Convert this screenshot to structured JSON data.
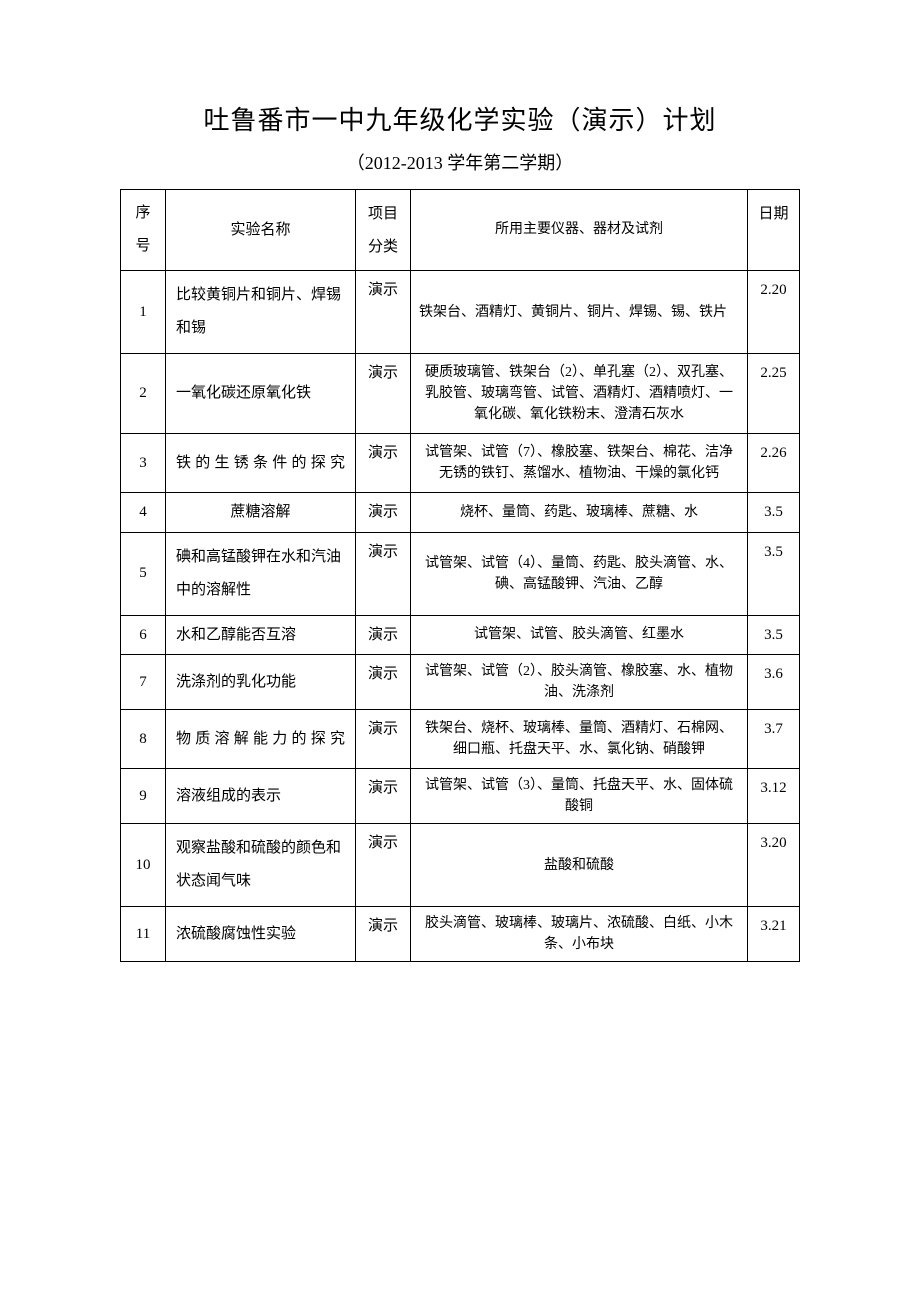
{
  "title": "吐鲁番市一中九年级化学实验（演示）计划",
  "subtitle": "（2012-2013 学年第二学期）",
  "headers": {
    "num": "序号",
    "name": "实验名称",
    "type": "项目分类",
    "equipment": "所用主要仪器、器材及试剂",
    "date": "日期"
  },
  "rows": [
    {
      "num": "1",
      "name": "比较黄铜片和铜片、焊锡和锡",
      "type": "演示",
      "equipment": "铁架台、酒精灯、黄铜片、铜片、焊锡、锡、铁片",
      "date": "2.20"
    },
    {
      "num": "2",
      "name": "一氧化碳还原氧化铁",
      "type": "演示",
      "equipment": "硬质玻璃管、铁架台（2）、单孔塞（2）、双孔塞、乳胶管、玻璃弯管、试管、酒精灯、酒精喷灯、一氧化碳、氧化铁粉末、澄清石灰水",
      "date": "2.25"
    },
    {
      "num": "3",
      "name": "铁的生锈条件的探究",
      "type": "演示",
      "equipment": "试管架、试管（7）、橡胶塞、铁架台、棉花、洁净无锈的铁钉、蒸馏水、植物油、干燥的氯化钙",
      "date": "2.26"
    },
    {
      "num": "4",
      "name": "蔗糖溶解",
      "type": "演示",
      "equipment": "烧杯、量筒、药匙、玻璃棒、蔗糖、水",
      "date": "3.5"
    },
    {
      "num": "5",
      "name": "碘和高锰酸钾在水和汽油中的溶解性",
      "type": "演示",
      "equipment": "试管架、试管（4）、量筒、药匙、胶头滴管、水、碘、高锰酸钾、汽油、乙醇",
      "date": "3.5"
    },
    {
      "num": "6",
      "name": "水和乙醇能否互溶",
      "type": "演示",
      "equipment": "试管架、试管、胶头滴管、红墨水",
      "date": "3.5"
    },
    {
      "num": "7",
      "name": "洗涤剂的乳化功能",
      "type": "演示",
      "equipment": "试管架、试管（2）、胶头滴管、橡胶塞、水、植物油、洗涤剂",
      "date": "3.6"
    },
    {
      "num": "8",
      "name": "物质溶解能力的探究",
      "type": "演示",
      "equipment": "铁架台、烧杯、玻璃棒、量筒、酒精灯、石棉网、细口瓶、托盘天平、水、氯化钠、硝酸钾",
      "date": "3.7"
    },
    {
      "num": "9",
      "name": "溶液组成的表示",
      "type": "演示",
      "equipment": "试管架、试管（3）、量筒、托盘天平、水、固体硫酸铜",
      "date": "3.12"
    },
    {
      "num": "10",
      "name": "观察盐酸和硫酸的颜色和状态闻气味",
      "type": "演示",
      "equipment": "盐酸和硫酸",
      "date": "3.20"
    },
    {
      "num": "11",
      "name": "浓硫酸腐蚀性实验",
      "type": "演示",
      "equipment": "胶头滴管、玻璃棒、玻璃片、浓硫酸、白纸、小木条、小布块",
      "date": "3.21"
    }
  ]
}
